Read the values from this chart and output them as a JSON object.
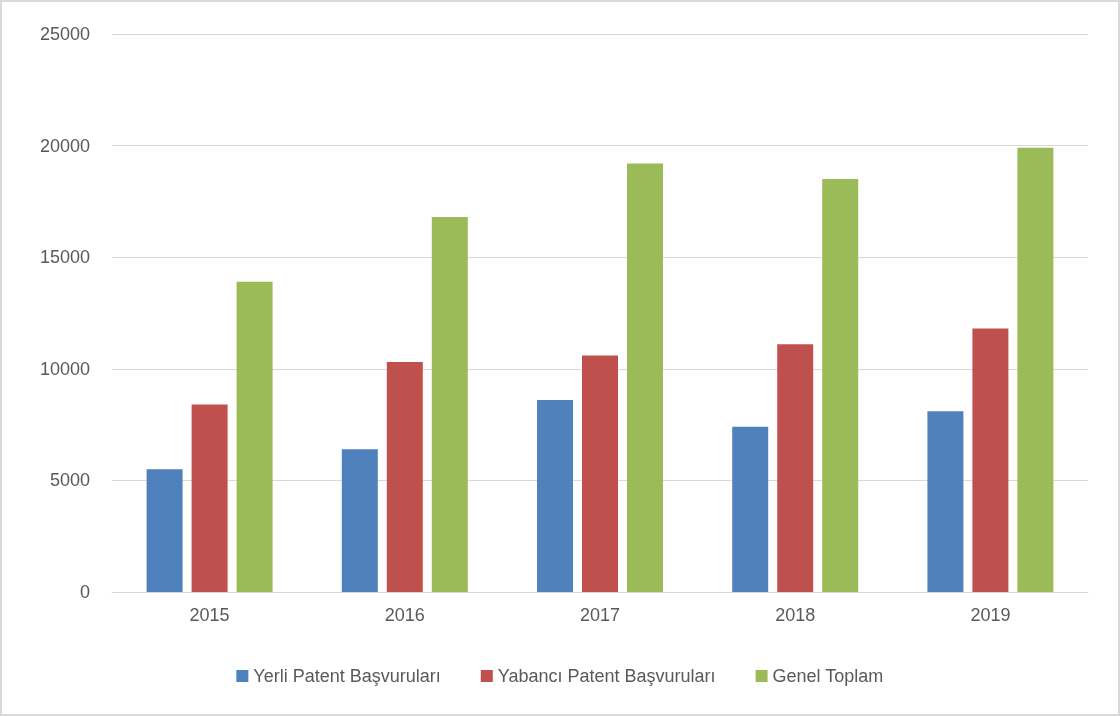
{
  "chart_data": {
    "type": "bar",
    "categories": [
      "2015",
      "2016",
      "2017",
      "2018",
      "2019"
    ],
    "series": [
      {
        "name": "Yerli Patent Başvuruları",
        "color": "#4f81bd",
        "values": [
          5500,
          6400,
          8600,
          7400,
          8100
        ]
      },
      {
        "name": "Yabancı Patent Başvuruları",
        "color": "#c0504d",
        "values": [
          8400,
          10300,
          10600,
          11100,
          11800
        ]
      },
      {
        "name": "Genel Toplam",
        "color": "#9bbb59",
        "values": [
          13900,
          16800,
          19200,
          18500,
          19900
        ]
      }
    ],
    "ylim": [
      0,
      25000
    ],
    "yticks": [
      0,
      5000,
      10000,
      15000,
      20000,
      25000
    ],
    "grid": "y",
    "legend": "bottom"
  }
}
